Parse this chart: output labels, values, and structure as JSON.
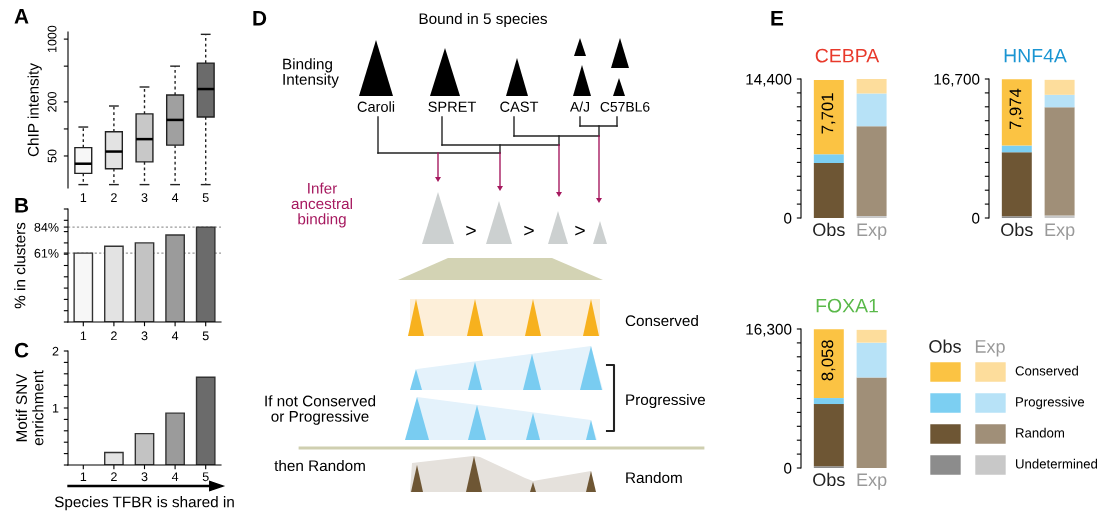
{
  "chart_data": [
    {
      "type": "box",
      "annotations": [
        "A"
      ],
      "ylabel": "ChIP intensity",
      "categories": [
        "1",
        "2",
        "3",
        "4",
        "5"
      ],
      "log": true,
      "ylim": [
        22,
        1200
      ],
      "yticks": [
        50,
        {
          "value": 100,
          "label": null
        },
        200,
        {
          "value": 500,
          "label": null
        },
        1000
      ],
      "colors": [
        "#f7f7f7",
        "#e3e3e3",
        "#c8c8c8",
        "#a0a0a0",
        "#6b6b6b"
      ],
      "boxes": [
        {
          "low": 24,
          "q1": 32,
          "median": 41,
          "q3": 62,
          "high": 105
        },
        {
          "low": 24,
          "q1": 36,
          "median": 56,
          "q3": 93,
          "high": 180
        },
        {
          "low": 24,
          "q1": 43,
          "median": 77,
          "q3": 147,
          "high": 293
        },
        {
          "low": 24,
          "q1": 66,
          "median": 126,
          "q3": 239,
          "high": 500
        },
        {
          "low": 24,
          "q1": 136,
          "median": 278,
          "q3": 541,
          "high": 1130
        }
      ]
    },
    {
      "type": "bar",
      "annotations": [
        "B"
      ],
      "ylabel": "% in clusters",
      "categories": [
        "1",
        "2",
        "3",
        "4",
        "5"
      ],
      "values": [
        61,
        67,
        70,
        77,
        84
      ],
      "colors": [
        "#f7f7f7",
        "#e3e3e3",
        "#c3c3c3",
        "#9b9b9b",
        "#6b6b6b"
      ],
      "ylim": [
        0,
        100
      ],
      "yticks": [
        {
          "value": 0,
          "label": null
        },
        {
          "value": 10,
          "label": null
        },
        {
          "value": 20,
          "label": null
        },
        {
          "value": 30,
          "label": null
        },
        {
          "value": 40,
          "label": null
        },
        {
          "value": 50,
          "label": null
        },
        {
          "value": 60,
          "label": null
        },
        {
          "value": 61,
          "label": "61%"
        },
        {
          "value": 70,
          "label": null
        },
        {
          "value": 80,
          "label": null
        },
        {
          "value": 84,
          "label": "84%"
        },
        {
          "value": 90,
          "label": null
        },
        {
          "value": 100,
          "label": null
        }
      ],
      "ref_lines": [
        {
          "axis": "y",
          "value": 61,
          "color": "#999999",
          "line_style": "dotted"
        },
        {
          "axis": "y",
          "value": 84,
          "color": "#999999",
          "line_style": "dotted"
        }
      ]
    },
    {
      "type": "bar",
      "annotations": [
        "C"
      ],
      "ylabel": "Motif SNV\nenrichment",
      "xlabel": "Species TFBR is shared in",
      "categories": [
        "1",
        "2",
        "3",
        "4",
        "5"
      ],
      "values": [
        0,
        0.22,
        0.55,
        0.91,
        1.54
      ],
      "colors": [
        "#f7f7f7",
        "#e3e3e3",
        "#c3c3c3",
        "#9b9b9b",
        "#6b6b6b"
      ],
      "ylim": [
        0,
        2
      ],
      "yticks": [
        {
          "value": 0,
          "label": null
        },
        {
          "value": 0.2,
          "label": null
        },
        {
          "value": 0.4,
          "label": null
        },
        {
          "value": 0.6,
          "label": null
        },
        {
          "value": 0.8,
          "label": null
        },
        1,
        {
          "value": 1.2,
          "label": null
        },
        {
          "value": 1.4,
          "label": null
        },
        {
          "value": 1.6,
          "label": null
        },
        {
          "value": 1.8,
          "label": null
        },
        2
      ]
    },
    {
      "type": "other",
      "title": "Bound in 5 species",
      "annotations": [
        "D",
        "Binding\nIntensity",
        "Caroli",
        "SPRET",
        "CAST",
        "A/J",
        "C57BL6",
        "Infer\nancestral\nbinding",
        ">",
        ">",
        ">",
        "Conserved",
        "Progressive",
        "If not Conserved\nor Progressive",
        "then Random",
        "Random"
      ]
    },
    {
      "type": "bar",
      "stacked": true,
      "title": "CEBPA",
      "annotations": [
        "E"
      ],
      "categories": [
        "Obs",
        "Exp"
      ],
      "ylim": [
        0,
        14400
      ],
      "yticks": [
        0,
        {
          "value": 1440,
          "label": null
        },
        {
          "value": 2880,
          "label": null
        },
        {
          "value": 4320,
          "label": null
        },
        {
          "value": 5760,
          "label": null
        },
        {
          "value": 7200,
          "label": null
        },
        {
          "value": 8640,
          "label": null
        },
        {
          "value": 10080,
          "label": null
        },
        {
          "value": 11520,
          "label": null
        },
        {
          "value": 12960,
          "label": null
        },
        {
          "value": 14400,
          "label": "14,400"
        }
      ],
      "series": [
        {
          "colors": [
            "#8c8c8c",
            "#c8c8c8"
          ],
          "values": [
            0,
            200
          ]
        },
        {
          "colors": [
            "#6e5634",
            "#a08f78"
          ],
          "values": [
            5700,
            9300
          ]
        },
        {
          "colors": [
            "#7ccff2",
            "#b7e2f7"
          ],
          "values": [
            900,
            3400
          ]
        },
        {
          "colors": [
            "#fbc343",
            "#fddd9c"
          ],
          "values": [
            7701,
            1500
          ],
          "value_labels": [
            "7,701",
            null
          ]
        }
      ]
    },
    {
      "type": "bar",
      "stacked": true,
      "title": "HNF4A",
      "legend": "bottom",
      "categories": [
        "Obs",
        "Exp"
      ],
      "ylim": [
        0,
        16700
      ],
      "yticks": [
        0,
        {
          "value": 1670,
          "label": null
        },
        {
          "value": 3340,
          "label": null
        },
        {
          "value": 5010,
          "label": null
        },
        {
          "value": 6680,
          "label": null
        },
        {
          "value": 8350,
          "label": null
        },
        {
          "value": 10020,
          "label": null
        },
        {
          "value": 11690,
          "label": null
        },
        {
          "value": 13360,
          "label": null
        },
        {
          "value": 15030,
          "label": null
        },
        {
          "value": 16700,
          "label": "16,700"
        }
      ],
      "series": [
        {
          "name": "Undetermined",
          "colors": [
            "#8c8c8c",
            "#c8c8c8"
          ],
          "values": [
            200,
            300
          ]
        },
        {
          "name": "Random",
          "colors": [
            "#6e5634",
            "#a08f78"
          ],
          "values": [
            7700,
            13000
          ]
        },
        {
          "name": "Progressive",
          "colors": [
            "#7ccff2",
            "#b7e2f7"
          ],
          "values": [
            800,
            1500
          ]
        },
        {
          "name": "Conserved",
          "colors": [
            "#fbc343",
            "#fddd9c"
          ],
          "values": [
            7974,
            1800
          ],
          "value_labels": [
            "7,974",
            null
          ]
        }
      ]
    },
    {
      "type": "bar",
      "stacked": true,
      "title": "FOXA1",
      "categories": [
        "Obs",
        "Exp"
      ],
      "ylim": [
        0,
        16300
      ],
      "yticks": [
        0,
        {
          "value": 1630,
          "label": null
        },
        {
          "value": 3260,
          "label": null
        },
        {
          "value": 4890,
          "label": null
        },
        {
          "value": 6520,
          "label": null
        },
        {
          "value": 8150,
          "label": null
        },
        {
          "value": 9780,
          "label": null
        },
        {
          "value": 11410,
          "label": null
        },
        {
          "value": 13040,
          "label": null
        },
        {
          "value": 14670,
          "label": null
        },
        {
          "value": 16300,
          "label": "16,300"
        }
      ],
      "series": [
        {
          "colors": [
            "#8c8c8c",
            "#c8c8c8"
          ],
          "values": [
            200,
            0
          ]
        },
        {
          "colors": [
            "#6e5634",
            "#a08f78"
          ],
          "values": [
            7300,
            10600
          ]
        },
        {
          "colors": [
            "#7ccff2",
            "#b7e2f7"
          ],
          "values": [
            700,
            4100
          ]
        },
        {
          "colors": [
            "#fbc343",
            "#fddd9c"
          ],
          "values": [
            8058,
            1500
          ],
          "value_labels": [
            "8,058",
            null
          ]
        }
      ]
    }
  ]
}
